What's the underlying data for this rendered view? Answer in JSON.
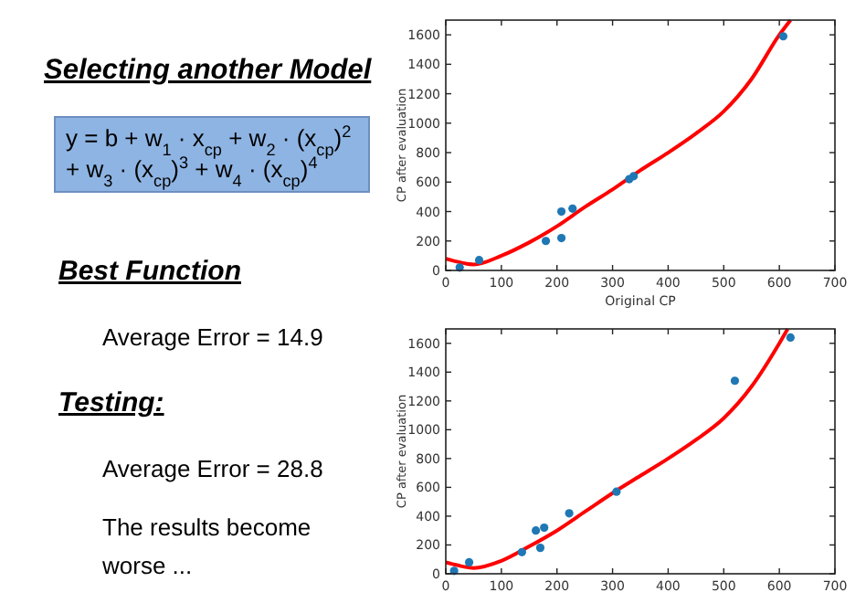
{
  "chart_data": [
    {
      "type": "other",
      "title": "Selecting another Model",
      "annotations": [
        "y = b + w$_{1}$ · x$_{cp}$ + w$_{2}$ · (x$_{cp}$)$^{2}$",
        "+ w$_{3}$ · (x$_{cp}$)$^{3}$ + w$_{4}$ · (x$_{cp}$)$^{4}$",
        "Best Function",
        "Average Error = 14.9",
        "Testing:",
        "Average Error = 28.8",
        "The results become worse ..."
      ]
    },
    {
      "type": "scatter",
      "xlabel": "Original CP",
      "ylabel": "CP after evaluation",
      "xlim": [
        0,
        700
      ],
      "ylim": [
        0,
        1700
      ],
      "xticks": [
        0,
        100,
        200,
        300,
        400,
        500,
        600,
        700
      ],
      "yticks": [
        0,
        200,
        400,
        600,
        800,
        1000,
        1200,
        1400,
        1600
      ],
      "grid": false,
      "series": [
        {
          "type": "scatter",
          "color": "#1f77b4",
          "marker": "circle",
          "x": [
            25,
            60,
            180,
            208,
            208,
            228,
            330,
            338,
            607
          ],
          "values": [
            20,
            70,
            200,
            400,
            220,
            420,
            620,
            640,
            1590
          ]
        },
        {
          "type": "line",
          "color": "#ff0000",
          "marker": "none",
          "line_style": "solid",
          "x": [
            0,
            20,
            50,
            100,
            150,
            200,
            250,
            300,
            350,
            400,
            450,
            500,
            550,
            600,
            620
          ],
          "values": [
            80,
            60,
            40,
            100,
            190,
            300,
            430,
            550,
            680,
            800,
            930,
            1080,
            1300,
            1600,
            1700
          ]
        }
      ]
    },
    {
      "type": "scatter",
      "ylabel": "CP after evaluation",
      "xlim": [
        0,
        700
      ],
      "ylim": [
        0,
        1700
      ],
      "xticks": [
        0,
        100,
        200,
        300,
        400,
        500,
        600,
        700
      ],
      "yticks": [
        0,
        200,
        400,
        600,
        800,
        1000,
        1200,
        1400,
        1600
      ],
      "grid": false,
      "series": [
        {
          "type": "scatter",
          "color": "#1f77b4",
          "marker": "circle",
          "x": [
            15,
            42,
            137,
            162,
            170,
            177,
            222,
            307,
            520,
            620
          ],
          "values": [
            20,
            80,
            150,
            300,
            180,
            320,
            420,
            570,
            1340,
            1640
          ]
        },
        {
          "type": "line",
          "color": "#ff0000",
          "marker": "none",
          "line_style": "solid",
          "x": [
            0,
            20,
            50,
            100,
            150,
            200,
            250,
            300,
            350,
            400,
            450,
            500,
            550,
            600,
            615
          ],
          "values": [
            80,
            60,
            40,
            90,
            190,
            300,
            430,
            560,
            680,
            800,
            930,
            1080,
            1300,
            1600,
            1700
          ]
        }
      ]
    }
  ]
}
